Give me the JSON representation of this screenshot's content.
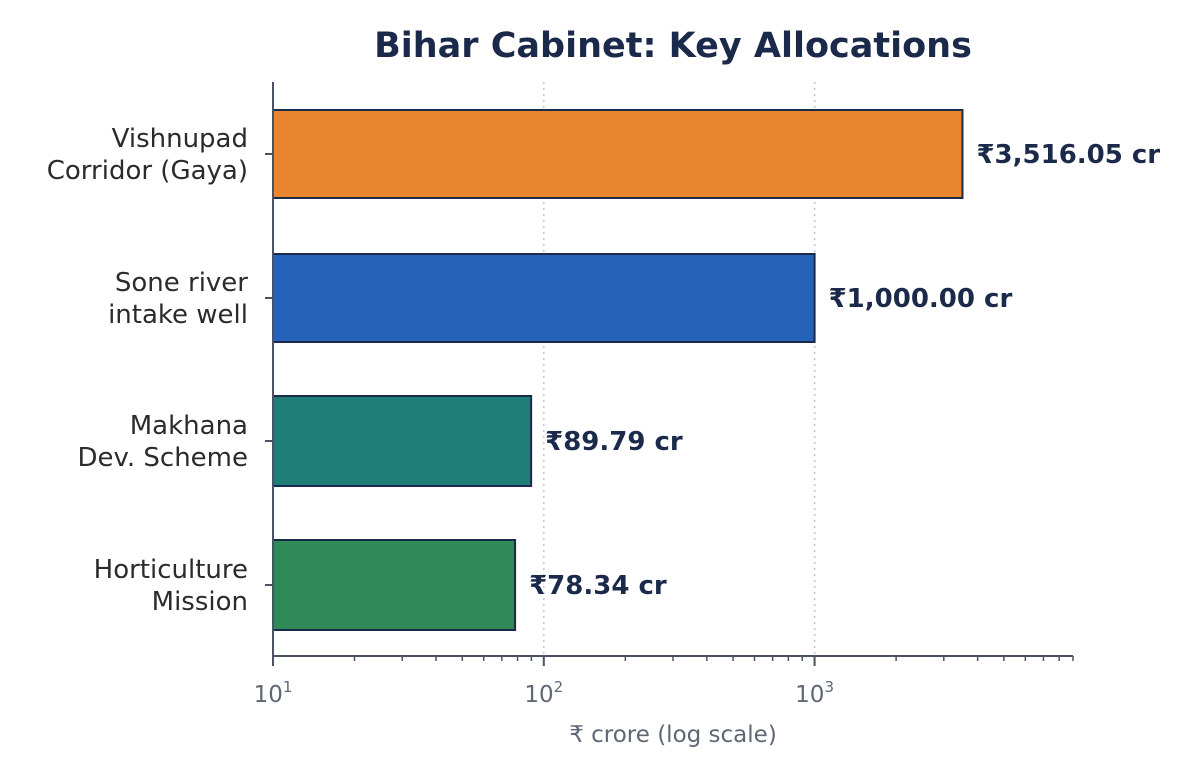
{
  "chart_data": {
    "type": "bar",
    "orientation": "horizontal",
    "title": "Bihar Cabinet: Key Allocations",
    "xlabel": "₹ crore (log scale)",
    "ylabel": "",
    "x_scale": "log",
    "xlim": [
      10,
      9000
    ],
    "grid": "x-major-dotted",
    "categories": [
      [
        "Vishnupad",
        "Corridor (Gaya)"
      ],
      [
        "Sone river",
        "intake well"
      ],
      [
        "Makhana",
        "Dev. Scheme"
      ],
      [
        "Horticulture",
        "Mission"
      ]
    ],
    "values": [
      3516.05,
      1000.0,
      89.79,
      78.34
    ],
    "value_labels": [
      "₹3,516.05 cr",
      "₹1,000.00 cr",
      "₹89.79 cr",
      "₹78.34 cr"
    ],
    "colors": [
      "#e8852e",
      "#2563b8",
      "#1f7d78",
      "#2e8b57"
    ],
    "x_ticks": [
      {
        "value": 10,
        "base": "10",
        "exp": "1"
      },
      {
        "value": 100,
        "base": "10",
        "exp": "2"
      },
      {
        "value": 1000,
        "base": "10",
        "exp": "3"
      }
    ]
  },
  "colors": {
    "axis": "#4a5263",
    "grid": "#c4c8cf",
    "bar_edge": "#1b2a4a"
  }
}
